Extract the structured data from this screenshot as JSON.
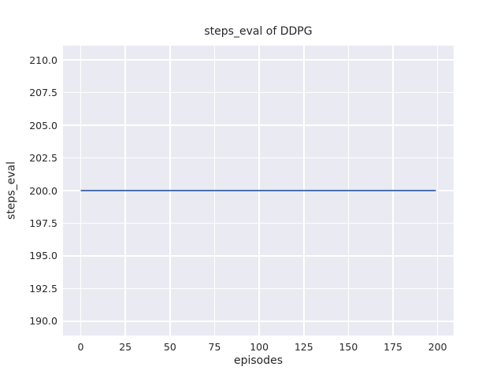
{
  "chart_data": {
    "type": "line",
    "title": "steps_eval of DDPG",
    "xlabel": "episodes",
    "ylabel": "steps_eval",
    "x_ticks": [
      0,
      25,
      50,
      75,
      100,
      125,
      150,
      175,
      200
    ],
    "x_tick_labels": [
      "0",
      "25",
      "50",
      "75",
      "100",
      "125",
      "150",
      "175",
      "200"
    ],
    "y_ticks": [
      190.0,
      192.5,
      195.0,
      197.5,
      200.0,
      202.5,
      205.0,
      207.5,
      210.0
    ],
    "y_tick_labels": [
      "190.0",
      "192.5",
      "195.0",
      "197.5",
      "200.0",
      "202.5",
      "205.0",
      "207.5",
      "210.0"
    ],
    "xlim": [
      -9.95,
      208.95
    ],
    "ylim": [
      188.9,
      211.1
    ],
    "grid": true,
    "legend": false,
    "style": "seaborn-darkgrid",
    "series": [
      {
        "name": "steps_eval",
        "color": "#4c72b0",
        "line_width": 2,
        "points": [
          [
            0,
            200
          ],
          [
            199,
            200
          ]
        ]
      }
    ],
    "colors": {
      "figure_background": "#ffffff",
      "plot_background": "#eaeaf2",
      "gridline": "#ffffff",
      "text": "#262626"
    }
  }
}
